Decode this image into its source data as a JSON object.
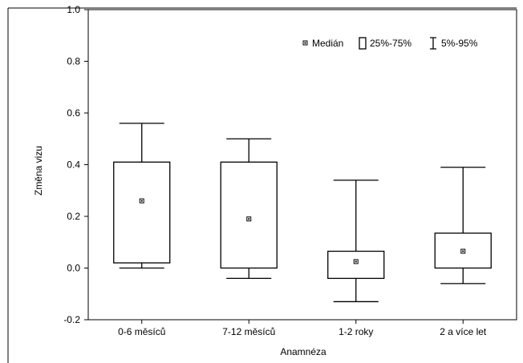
{
  "chart_data": {
    "type": "box",
    "title": "",
    "xlabel": "Anamnéza",
    "ylabel": "Změna vizu",
    "ylim": [
      -0.2,
      1.0
    ],
    "yticks": [
      "-0.2",
      "0.0",
      "0.2",
      "0.4",
      "0.6",
      "0.8",
      "1.0"
    ],
    "yticks_values": [
      -0.2,
      0.0,
      0.2,
      0.4,
      0.6,
      0.8,
      1.0
    ],
    "grid": false,
    "legend": {
      "placement": "top-right",
      "entries": [
        {
          "symbol": "median-square",
          "label": "Medián"
        },
        {
          "symbol": "box",
          "label": "25%-75%"
        },
        {
          "symbol": "whisker",
          "label": "5%-95%"
        }
      ]
    },
    "categories": [
      "0-6 měsíců",
      "7-12 měsíců",
      "1-2 roky",
      "2 a více let"
    ],
    "series": [
      {
        "p5": 0.0,
        "q1": 0.02,
        "median": 0.26,
        "q3": 0.41,
        "p95": 0.56
      },
      {
        "p5": -0.04,
        "q1": 0.0,
        "median": 0.19,
        "q3": 0.41,
        "p95": 0.5
      },
      {
        "p5": -0.13,
        "q1": -0.04,
        "median": 0.025,
        "q3": 0.065,
        "p95": 0.34
      },
      {
        "p5": -0.06,
        "q1": 0.0,
        "median": 0.065,
        "q3": 0.135,
        "p95": 0.39
      }
    ]
  }
}
